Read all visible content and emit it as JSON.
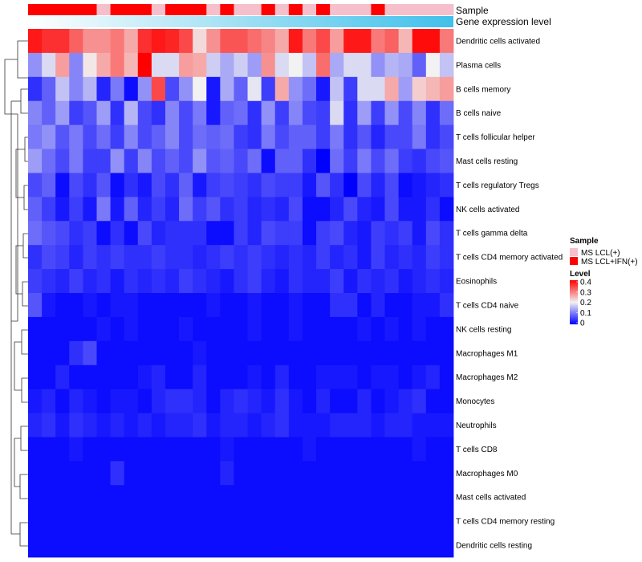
{
  "chart_data": {
    "type": "heatmap",
    "title": "",
    "annotation_tracks": [
      {
        "name": "Sample",
        "kind": "categorical"
      },
      {
        "name": "Gene expression level",
        "kind": "gradient"
      }
    ],
    "sample_groups": [
      "MS LCL+IFN(+)",
      "MS LCL+IFN(+)",
      "MS LCL+IFN(+)",
      "MS LCL+IFN(+)",
      "MS LCL+IFN(+)",
      "MS LCL(+)",
      "MS LCL+IFN(+)",
      "MS LCL+IFN(+)",
      "MS LCL+IFN(+)",
      "MS LCL(+)",
      "MS LCL+IFN(+)",
      "MS LCL+IFN(+)",
      "MS LCL+IFN(+)",
      "MS LCL(+)",
      "MS LCL+IFN(+)",
      "MS LCL(+)",
      "MS LCL(+)",
      "MS LCL+IFN(+)",
      "MS LCL(+)",
      "MS LCL+IFN(+)",
      "MS LCL(+)",
      "MS LCL+IFN(+)",
      "MS LCL(+)",
      "MS LCL(+)",
      "MS LCL(+)",
      "MS LCL+IFN(+)",
      "MS LCL(+)",
      "MS LCL(+)",
      "MS LCL(+)",
      "MS LCL(+)",
      "MS LCL(+)"
    ],
    "rows": [
      "Dendritic cells activated",
      "Plasma cells",
      "B cells memory",
      "B cells naive",
      "T cells follicular helper",
      "Mast cells resting",
      "T cells regulatory  Tregs",
      "NK cells activated",
      "T cells gamma delta",
      "T cells CD4 memory activated",
      "Eosinophils",
      "T cells CD4 naive",
      "NK cells resting",
      "Macrophages M1",
      "Macrophages M2",
      "Monocytes",
      "Neutrophils",
      "T cells CD8",
      "Macrophages M0",
      "Mast cells activated",
      "T cells CD4 memory resting",
      "Dendritic cells resting"
    ],
    "values": [
      [
        0.38,
        0.36,
        0.36,
        0.32,
        0.28,
        0.28,
        0.3,
        0.26,
        0.36,
        0.38,
        0.37,
        0.34,
        0.22,
        0.28,
        0.33,
        0.33,
        0.31,
        0.29,
        0.26,
        0.38,
        0.3,
        0.34,
        0.27,
        0.38,
        0.38,
        0.3,
        0.32,
        0.25,
        0.39,
        0.39,
        0.3
      ],
      [
        0.12,
        0.18,
        0.27,
        0.11,
        0.21,
        0.26,
        0.3,
        0.25,
        0.4,
        0.18,
        0.18,
        0.27,
        0.26,
        0.17,
        0.14,
        0.17,
        0.13,
        0.28,
        0.18,
        0.2,
        0.16,
        0.31,
        0.14,
        0.18,
        0.18,
        0.12,
        0.15,
        0.14,
        0.08,
        0.2,
        0.16
      ],
      [
        0.04,
        0.08,
        0.16,
        0.11,
        0.15,
        0.03,
        0.1,
        0.01,
        0.12,
        0.34,
        0.06,
        0.12,
        0.2,
        0.02,
        0.14,
        0.08,
        0.19,
        0.05,
        0.26,
        0.12,
        0.09,
        0.02,
        0.16,
        0.05,
        0.18,
        0.18,
        0.26,
        0.13,
        0.23,
        0.25,
        0.27
      ],
      [
        0.11,
        0.08,
        0.13,
        0.05,
        0.07,
        0.13,
        0.04,
        0.15,
        0.06,
        0.04,
        0.11,
        0.06,
        0.1,
        0.02,
        0.08,
        0.09,
        0.04,
        0.12,
        0.05,
        0.11,
        0.06,
        0.05,
        0.18,
        0.04,
        0.13,
        0.05,
        0.12,
        0.06,
        0.11,
        0.04,
        0.09
      ],
      [
        0.1,
        0.12,
        0.07,
        0.1,
        0.06,
        0.09,
        0.05,
        0.11,
        0.06,
        0.08,
        0.11,
        0.06,
        0.09,
        0.08,
        0.09,
        0.05,
        0.04,
        0.1,
        0.06,
        0.08,
        0.08,
        0.05,
        0.1,
        0.04,
        0.07,
        0.03,
        0.06,
        0.06,
        0.1,
        0.04,
        0.06
      ],
      [
        0.13,
        0.09,
        0.06,
        0.1,
        0.05,
        0.05,
        0.12,
        0.05,
        0.11,
        0.06,
        0.08,
        0.06,
        0.12,
        0.07,
        0.08,
        0.06,
        0.09,
        0.01,
        0.08,
        0.08,
        0.04,
        0.0,
        0.09,
        0.05,
        0.1,
        0.06,
        0.09,
        0.05,
        0.04,
        0.06,
        0.07
      ],
      [
        0.06,
        0.08,
        0.01,
        0.06,
        0.04,
        0.07,
        0.01,
        0.04,
        0.02,
        0.06,
        0.04,
        0.08,
        0.02,
        0.05,
        0.06,
        0.05,
        0.04,
        0.06,
        0.05,
        0.05,
        0.02,
        0.07,
        0.04,
        0.0,
        0.06,
        0.03,
        0.06,
        0.01,
        0.02,
        0.03,
        0.04
      ],
      [
        0.08,
        0.05,
        0.02,
        0.05,
        0.02,
        0.1,
        0.02,
        0.08,
        0.03,
        0.05,
        0.03,
        0.09,
        0.05,
        0.07,
        0.04,
        0.05,
        0.03,
        0.04,
        0.03,
        0.06,
        0.01,
        0.01,
        0.03,
        0.06,
        0.03,
        0.02,
        0.06,
        0.02,
        0.02,
        0.04,
        0.01
      ],
      [
        0.09,
        0.07,
        0.06,
        0.04,
        0.05,
        0.01,
        0.04,
        0.01,
        0.06,
        0.03,
        0.04,
        0.04,
        0.04,
        0.01,
        0.01,
        0.05,
        0.03,
        0.06,
        0.05,
        0.05,
        0.01,
        0.05,
        0.06,
        0.03,
        0.02,
        0.05,
        0.04,
        0.05,
        0.02,
        0.06,
        0.04
      ],
      [
        0.04,
        0.06,
        0.05,
        0.03,
        0.05,
        0.04,
        0.05,
        0.04,
        0.04,
        0.05,
        0.04,
        0.04,
        0.03,
        0.04,
        0.05,
        0.04,
        0.05,
        0.04,
        0.03,
        0.04,
        0.03,
        0.05,
        0.03,
        0.04,
        0.02,
        0.05,
        0.03,
        0.04,
        0.03,
        0.05,
        0.04
      ],
      [
        0.05,
        0.04,
        0.03,
        0.05,
        0.03,
        0.04,
        0.02,
        0.04,
        0.03,
        0.04,
        0.03,
        0.05,
        0.04,
        0.03,
        0.02,
        0.04,
        0.05,
        0.03,
        0.02,
        0.04,
        0.03,
        0.03,
        0.05,
        0.02,
        0.04,
        0.03,
        0.04,
        0.02,
        0.03,
        0.04,
        0.03
      ],
      [
        0.07,
        0.02,
        0.01,
        0.01,
        0.02,
        0.01,
        0.02,
        0.02,
        0.01,
        0.01,
        0.01,
        0.01,
        0.01,
        0.02,
        0.01,
        0.01,
        0.02,
        0.01,
        0.01,
        0.02,
        0.01,
        0.01,
        0.04,
        0.04,
        0.01,
        0.03,
        0.01,
        0.01,
        0.02,
        0.02,
        0.04
      ],
      [
        0.01,
        0.01,
        0.01,
        0.01,
        0.01,
        0.02,
        0.01,
        0.02,
        0.01,
        0.01,
        0.01,
        0.02,
        0.01,
        0.01,
        0.01,
        0.01,
        0.02,
        0.01,
        0.01,
        0.02,
        0.01,
        0.01,
        0.01,
        0.01,
        0.02,
        0.01,
        0.02,
        0.01,
        0.02,
        0.01,
        0.01
      ],
      [
        0.01,
        0.01,
        0.01,
        0.04,
        0.06,
        0.01,
        0.01,
        0.01,
        0.01,
        0.01,
        0.01,
        0.01,
        0.02,
        0.01,
        0.01,
        0.01,
        0.01,
        0.01,
        0.01,
        0.01,
        0.01,
        0.01,
        0.01,
        0.01,
        0.01,
        0.01,
        0.01,
        0.01,
        0.01,
        0.01,
        0.01
      ],
      [
        0.01,
        0.01,
        0.03,
        0.01,
        0.01,
        0.01,
        0.01,
        0.01,
        0.02,
        0.03,
        0.01,
        0.01,
        0.03,
        0.01,
        0.01,
        0.01,
        0.02,
        0.01,
        0.03,
        0.01,
        0.01,
        0.02,
        0.02,
        0.02,
        0.01,
        0.02,
        0.02,
        0.01,
        0.02,
        0.03,
        0.01
      ],
      [
        0.02,
        0.03,
        0.01,
        0.03,
        0.02,
        0.01,
        0.02,
        0.02,
        0.01,
        0.03,
        0.04,
        0.04,
        0.03,
        0.01,
        0.03,
        0.04,
        0.03,
        0.02,
        0.04,
        0.02,
        0.01,
        0.03,
        0.01,
        0.01,
        0.03,
        0.01,
        0.02,
        0.03,
        0.04,
        0.01,
        0.01
      ],
      [
        0.03,
        0.04,
        0.02,
        0.04,
        0.03,
        0.02,
        0.03,
        0.02,
        0.03,
        0.02,
        0.03,
        0.03,
        0.04,
        0.02,
        0.03,
        0.03,
        0.02,
        0.03,
        0.04,
        0.02,
        0.02,
        0.02,
        0.03,
        0.03,
        0.03,
        0.02,
        0.03,
        0.03,
        0.02,
        0.02,
        0.02
      ],
      [
        0.01,
        0.01,
        0.01,
        0.02,
        0.01,
        0.01,
        0.01,
        0.01,
        0.01,
        0.01,
        0.01,
        0.01,
        0.01,
        0.01,
        0.02,
        0.01,
        0.01,
        0.01,
        0.01,
        0.01,
        0.02,
        0.01,
        0.01,
        0.01,
        0.01,
        0.01,
        0.01,
        0.01,
        0.02,
        0.01,
        0.01
      ],
      [
        0.01,
        0.01,
        0.01,
        0.01,
        0.01,
        0.01,
        0.04,
        0.01,
        0.01,
        0.01,
        0.01,
        0.01,
        0.01,
        0.01,
        0.03,
        0.01,
        0.01,
        0.01,
        0.01,
        0.01,
        0.01,
        0.01,
        0.01,
        0.01,
        0.01,
        0.01,
        0.01,
        0.01,
        0.01,
        0.01,
        0.01
      ],
      [
        0.01,
        0.01,
        0.01,
        0.01,
        0.01,
        0.01,
        0.01,
        0.01,
        0.01,
        0.01,
        0.01,
        0.01,
        0.01,
        0.01,
        0.01,
        0.01,
        0.01,
        0.01,
        0.01,
        0.01,
        0.01,
        0.01,
        0.01,
        0.01,
        0.01,
        0.01,
        0.01,
        0.01,
        0.01,
        0.01,
        0.01
      ],
      [
        0.01,
        0.01,
        0.01,
        0.01,
        0.01,
        0.01,
        0.01,
        0.01,
        0.01,
        0.01,
        0.01,
        0.01,
        0.01,
        0.01,
        0.01,
        0.01,
        0.01,
        0.01,
        0.01,
        0.01,
        0.01,
        0.01,
        0.01,
        0.01,
        0.01,
        0.01,
        0.01,
        0.01,
        0.01,
        0.01,
        0.01
      ],
      [
        0.01,
        0.01,
        0.01,
        0.01,
        0.01,
        0.01,
        0.01,
        0.01,
        0.01,
        0.01,
        0.01,
        0.01,
        0.01,
        0.01,
        0.01,
        0.01,
        0.01,
        0.01,
        0.01,
        0.01,
        0.01,
        0.01,
        0.01,
        0.01,
        0.01,
        0.01,
        0.01,
        0.01,
        0.01,
        0.01,
        0.01
      ]
    ],
    "color_scale": {
      "min": 0,
      "mid": 0.2,
      "max": 0.4,
      "low_color": "#0000ff",
      "mid_color": "#f2f2f2",
      "high_color": "#ff0000"
    },
    "legend": {
      "sample_title": "Sample",
      "sample_entries": [
        {
          "label": "MS LCL(+)",
          "color": "#f5c0cc"
        },
        {
          "label": "MS LCL+IFN(+)",
          "color": "#ff0000"
        }
      ],
      "level_title": "Level",
      "level_ticks": [
        "0.4",
        "0.3",
        "0.2",
        "0.1",
        "0"
      ],
      "placement": "right"
    },
    "gene_expression_gradient": {
      "start_color": "#ffffff",
      "end_color": "#3fc0ea"
    }
  }
}
